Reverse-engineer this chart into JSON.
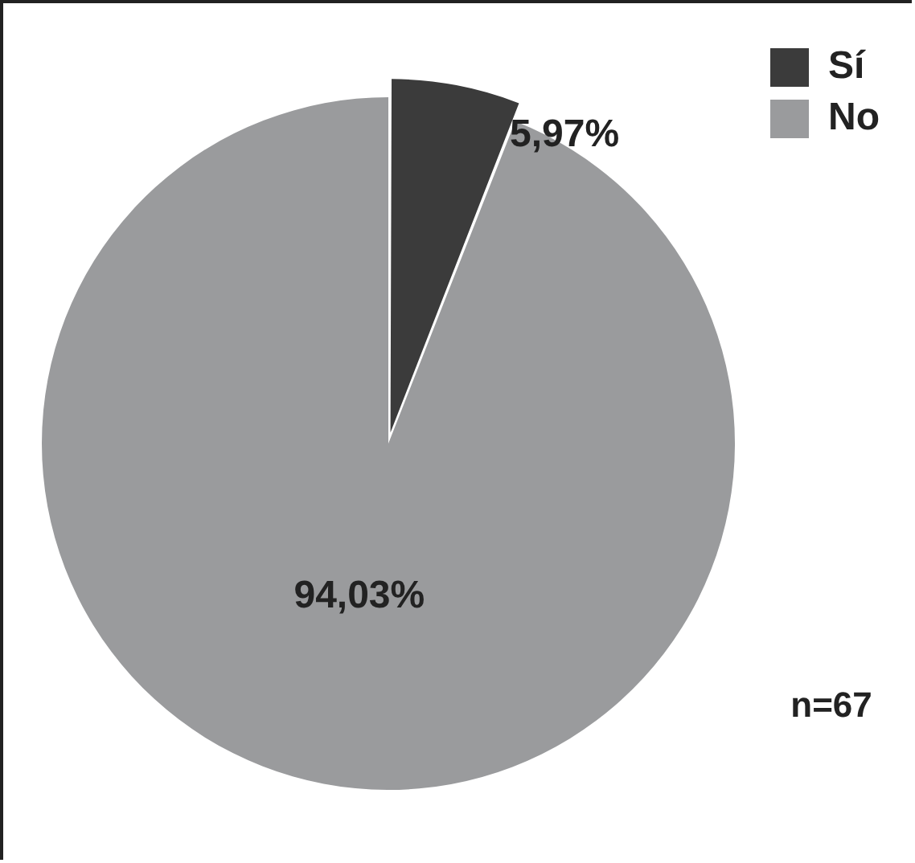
{
  "chart_data": {
    "type": "pie",
    "categories": [
      "Sí",
      "No"
    ],
    "values": [
      5.97,
      94.03
    ],
    "colors": [
      "#3b3b3b",
      "#9a9b9d"
    ],
    "value_labels": [
      "5,97%",
      "94,03%"
    ],
    "legend": "top right",
    "annotations": [
      "n=67"
    ]
  }
}
